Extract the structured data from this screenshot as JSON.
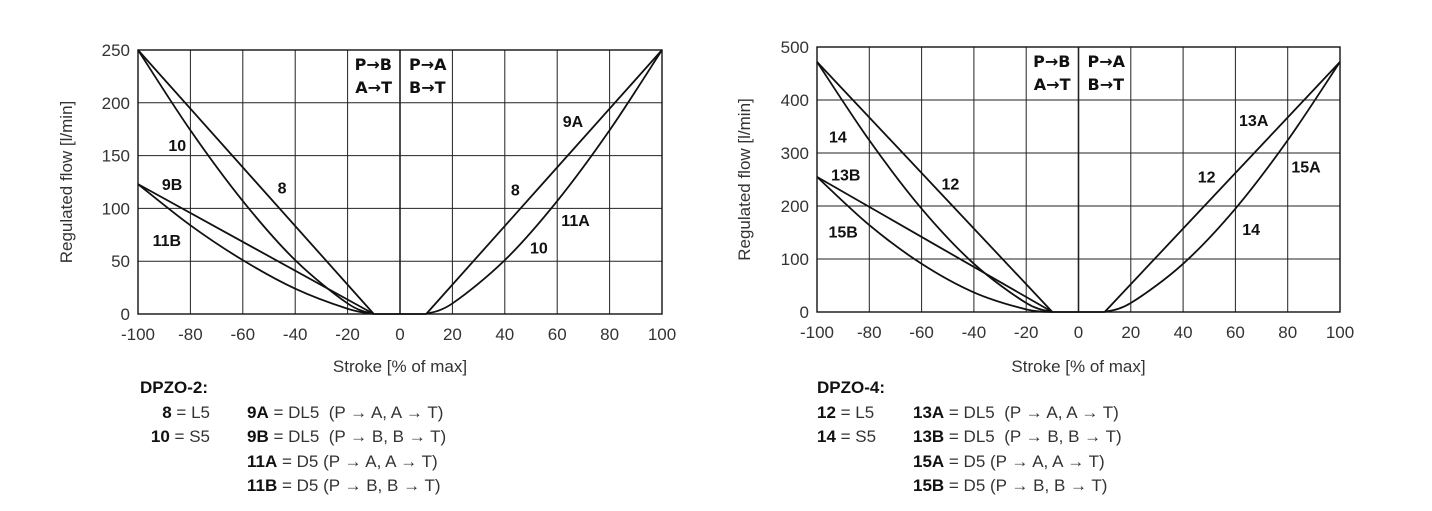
{
  "chart_data": [
    {
      "type": "line",
      "xlabel": "Stroke [% of max]",
      "ylabel": "Regulated flow [l/min]",
      "xlim": [
        -100,
        100
      ],
      "ylim": [
        0,
        250
      ],
      "xticks": [
        -100,
        -80,
        -60,
        -40,
        -20,
        0,
        20,
        40,
        60,
        80,
        100
      ],
      "yticks": [
        0,
        50,
        100,
        150,
        200,
        250
      ],
      "grid": true,
      "flow_labels": {
        "left": [
          "P→B",
          "A→T"
        ],
        "right": [
          "P→A",
          "B→T"
        ]
      },
      "series": [
        {
          "id": "8-left",
          "points": [
            [
              -100,
              250
            ],
            [
              -10,
              0
            ]
          ]
        },
        {
          "id": "10-left",
          "points": [
            [
              -100,
              250
            ],
            [
              -80,
              174
            ],
            [
              -60,
              107
            ],
            [
              -40,
              51
            ],
            [
              -20,
              10
            ],
            [
              -10,
              0
            ]
          ]
        },
        {
          "id": "9B",
          "points": [
            [
              -100,
              123
            ],
            [
              -10,
              0
            ]
          ]
        },
        {
          "id": "11B",
          "points": [
            [
              -100,
              123
            ],
            [
              -80,
              84
            ],
            [
              -60,
              51
            ],
            [
              -40,
              24
            ],
            [
              -20,
              5
            ],
            [
              -10,
              0
            ]
          ]
        },
        {
          "id": "8/9A-right",
          "points": [
            [
              10,
              0
            ],
            [
              100,
              250
            ]
          ]
        },
        {
          "id": "10/11A-right",
          "points": [
            [
              10,
              0
            ],
            [
              20,
              10
            ],
            [
              40,
              51
            ],
            [
              60,
              107
            ],
            [
              80,
              174
            ],
            [
              100,
              250
            ]
          ]
        }
      ],
      "annotations": [
        {
          "text": "10",
          "x": -85,
          "y": 160
        },
        {
          "text": "9B",
          "x": -87,
          "y": 123
        },
        {
          "text": "11B",
          "x": -89,
          "y": 70
        },
        {
          "text": "8",
          "x": -45,
          "y": 120
        },
        {
          "text": "9A",
          "x": 66,
          "y": 183
        },
        {
          "text": "8",
          "x": 44,
          "y": 118
        },
        {
          "text": "11A",
          "x": 67,
          "y": 89
        },
        {
          "text": "10",
          "x": 53,
          "y": 63
        }
      ]
    },
    {
      "type": "line",
      "xlabel": "Stroke [% of max]",
      "ylabel": "Regulated flow [l/min]",
      "xlim": [
        -100,
        100
      ],
      "ylim": [
        0,
        500
      ],
      "xticks": [
        -100,
        -80,
        -60,
        -40,
        -20,
        0,
        20,
        40,
        60,
        80,
        100
      ],
      "yticks": [
        0,
        100,
        200,
        300,
        400,
        500
      ],
      "grid": true,
      "flow_labels": {
        "left": [
          "P→B",
          "A→T"
        ],
        "right": [
          "P→A",
          "B→T"
        ]
      },
      "series": [
        {
          "id": "12-left",
          "points": [
            [
              -100,
              472
            ],
            [
              -10,
              0
            ]
          ]
        },
        {
          "id": "14-left",
          "points": [
            [
              -100,
              472
            ],
            [
              -80,
              324
            ],
            [
              -60,
              195
            ],
            [
              -40,
              91
            ],
            [
              -20,
              17
            ],
            [
              -10,
              0
            ]
          ]
        },
        {
          "id": "13B",
          "points": [
            [
              -100,
              255
            ],
            [
              -10,
              0
            ]
          ]
        },
        {
          "id": "15B",
          "points": [
            [
              -100,
              255
            ],
            [
              -80,
              164
            ],
            [
              -60,
              91
            ],
            [
              -40,
              37
            ],
            [
              -20,
              5
            ],
            [
              -10,
              0
            ]
          ]
        },
        {
          "id": "12/13A-right",
          "points": [
            [
              10,
              0
            ],
            [
              100,
              472
            ]
          ]
        },
        {
          "id": "14/15A-right",
          "points": [
            [
              10,
              0
            ],
            [
              20,
              17
            ],
            [
              40,
              91
            ],
            [
              60,
              195
            ],
            [
              80,
              324
            ],
            [
              100,
              472
            ]
          ]
        }
      ],
      "annotations": [
        {
          "text": "14",
          "x": -92,
          "y": 331
        },
        {
          "text": "13B",
          "x": -89,
          "y": 259
        },
        {
          "text": "15B",
          "x": -90,
          "y": 152
        },
        {
          "text": "12",
          "x": -49,
          "y": 242
        },
        {
          "text": "13A",
          "x": 67,
          "y": 362
        },
        {
          "text": "12",
          "x": 49,
          "y": 256
        },
        {
          "text": "15A",
          "x": 87,
          "y": 275
        },
        {
          "text": "14",
          "x": 66,
          "y": 157
        }
      ]
    }
  ],
  "legends": [
    {
      "title": "DPZO-2:",
      "rows": [
        {
          "c1_key": "8",
          "c1_val": " = L5",
          "c2_key": "9A",
          "c2_val": " = DL5  (P → A, A → T)"
        },
        {
          "c1_key": "10",
          "c1_val": " = S5",
          "c2_key": "9B",
          "c2_val": " = DL5  (P → B, B → T)"
        },
        {
          "c1_key": "",
          "c1_val": "",
          "c2_key": "11A",
          "c2_val": " = D5 (P → A, A → T)"
        },
        {
          "c1_key": "",
          "c1_val": "",
          "c2_key": "11B",
          "c2_val": " = D5 (P → B, B → T)"
        }
      ]
    },
    {
      "title": "DPZO-4:",
      "rows": [
        {
          "c1_key": "12",
          "c1_val": " = L5",
          "c2_key": "13A",
          "c2_val": " = DL5  (P → A, A → T)"
        },
        {
          "c1_key": "14",
          "c1_val": " = S5",
          "c2_key": "13B",
          "c2_val": " = DL5  (P → B, B → T)"
        },
        {
          "c1_key": "",
          "c1_val": "",
          "c2_key": "15A",
          "c2_val": " = D5 (P → A, A → T)"
        },
        {
          "c1_key": "",
          "c1_val": "",
          "c2_key": "15B",
          "c2_val": " = D5 (P → B, B → T)"
        }
      ]
    }
  ]
}
